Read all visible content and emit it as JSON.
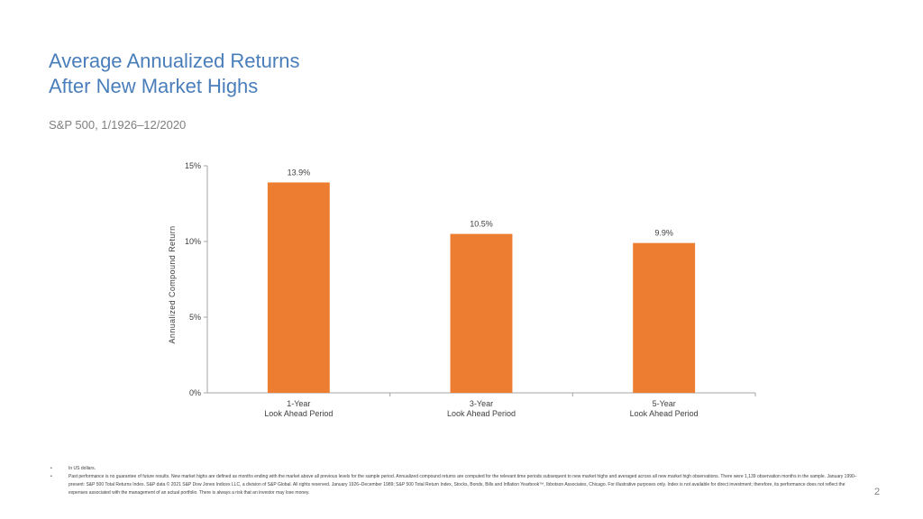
{
  "slide": {
    "title_lines": [
      "Average Annualized Returns",
      "After New Market Highs"
    ],
    "subtitle": "S&P 500, 1/1926–12/2020",
    "page_number": "2"
  },
  "chart_data": {
    "type": "bar",
    "categories": [
      [
        "1-Year",
        "Look Ahead Period"
      ],
      [
        "3-Year",
        "Look Ahead Period"
      ],
      [
        "5-Year",
        "Look Ahead Period"
      ]
    ],
    "values": [
      13.9,
      10.5,
      9.9
    ],
    "data_labels": [
      "13.9%",
      "10.5%",
      "9.9%"
    ],
    "ylabel": "Annualized Compound Return",
    "xlabel": "",
    "ylim": [
      0,
      15
    ],
    "yticks": [
      0,
      5,
      10,
      15
    ],
    "ytick_labels": [
      "0%",
      "5%",
      "10%",
      "15%"
    ],
    "bar_color": "#ed7d31",
    "grid": false,
    "legend": "none"
  },
  "footnotes": [
    {
      "bullet": "•",
      "text": "In US dollars."
    },
    {
      "bullet": "•",
      "text": "Past performance is no guarantee of future results. New market highs are defined as months ending with the market above all previous levels for the sample period. Annualized compound returns are computed for the relevant time periods subsequent to new market highs and averaged across all new market high observations. There were 1,139 observation months in the sample. January 1990–present: S&P 500 Total Returns Index. S&P data © 2021 S&P Dow Jones Indices LLC, a division of S&P Global. All rights reserved. January 1926–December 1989; S&P 500 Total Return Index, Stocks, Bonds, Bills and Inflation Yearbook™, Ibbotson Associates, Chicago. For illustrative purposes only. Index is not available for direct investment; therefore, its performance does not reflect the expenses associated with the management of an actual portfolio. There is always a risk that an investor may lose money."
    }
  ]
}
